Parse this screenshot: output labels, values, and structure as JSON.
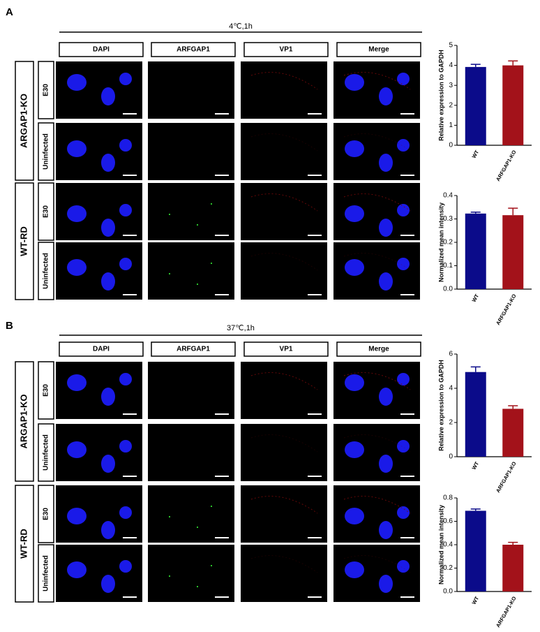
{
  "panels": [
    {
      "letter": "A",
      "condition": "4℃,1h",
      "columns": [
        "DAPI",
        "ARFGAP1",
        "VP1",
        "Merge"
      ],
      "groups": [
        {
          "label": "ARGAP1-KO",
          "rows": [
            "E30",
            "Uninfected"
          ]
        },
        {
          "label": "WT-RD",
          "rows": [
            "E30",
            "Uninfected"
          ]
        }
      ],
      "charts": [
        {
          "type": "bar",
          "y_label": "Relative expression to GAPDH",
          "categories": [
            "WT",
            "ARFGAP1-KO"
          ],
          "values": [
            3.92,
            4.0
          ],
          "errors": [
            0.13,
            0.22
          ],
          "colors": [
            "#0b0b8a",
            "#a3121a"
          ],
          "ylim": [
            0,
            5
          ],
          "yticks": [
            0,
            1,
            2,
            3,
            4,
            5
          ]
        },
        {
          "type": "bar",
          "y_label": "Normalized mean intensity",
          "categories": [
            "WT",
            "ARFGAP1-KO"
          ],
          "values": [
            0.323,
            0.316
          ],
          "errors": [
            0.006,
            0.03
          ],
          "colors": [
            "#0b0b8a",
            "#a3121a"
          ],
          "ylim": [
            0,
            0.4
          ],
          "yticks": [
            {
              "value": 0,
              "label": "0.0"
            },
            0.1,
            0.2,
            0.3,
            0.4
          ]
        }
      ]
    },
    {
      "letter": "B",
      "condition": "37℃,1h",
      "columns": [
        "DAPI",
        "ARFGAP1",
        "VP1",
        "Merge"
      ],
      "groups": [
        {
          "label": "ARGAP1-KO",
          "rows": [
            "E30",
            "Uninfected"
          ]
        },
        {
          "label": "WT-RD",
          "rows": [
            "E30",
            "Uninfected"
          ]
        }
      ],
      "charts": [
        {
          "type": "bar",
          "y_label": "Relative expression to GAPDH",
          "categories": [
            "WT",
            "ARFGAP1-KO"
          ],
          "values": [
            4.95,
            2.8
          ],
          "errors": [
            0.3,
            0.18
          ],
          "colors": [
            "#0b0b8a",
            "#a3121a"
          ],
          "ylim": [
            0,
            6
          ],
          "yticks": [
            0,
            2,
            4,
            6
          ]
        },
        {
          "type": "bar",
          "y_label": "Normalized mean intensity",
          "categories": [
            "WT",
            "ARFGAP1-KO"
          ],
          "values": [
            0.69,
            0.4
          ],
          "errors": [
            0.015,
            0.02
          ],
          "colors": [
            "#0b0b8a",
            "#a3121a"
          ],
          "ylim": [
            0,
            0.8
          ],
          "yticks": [
            {
              "value": 0,
              "label": "0.0"
            },
            0.2,
            0.4,
            0.6,
            0.8
          ]
        }
      ]
    }
  ]
}
